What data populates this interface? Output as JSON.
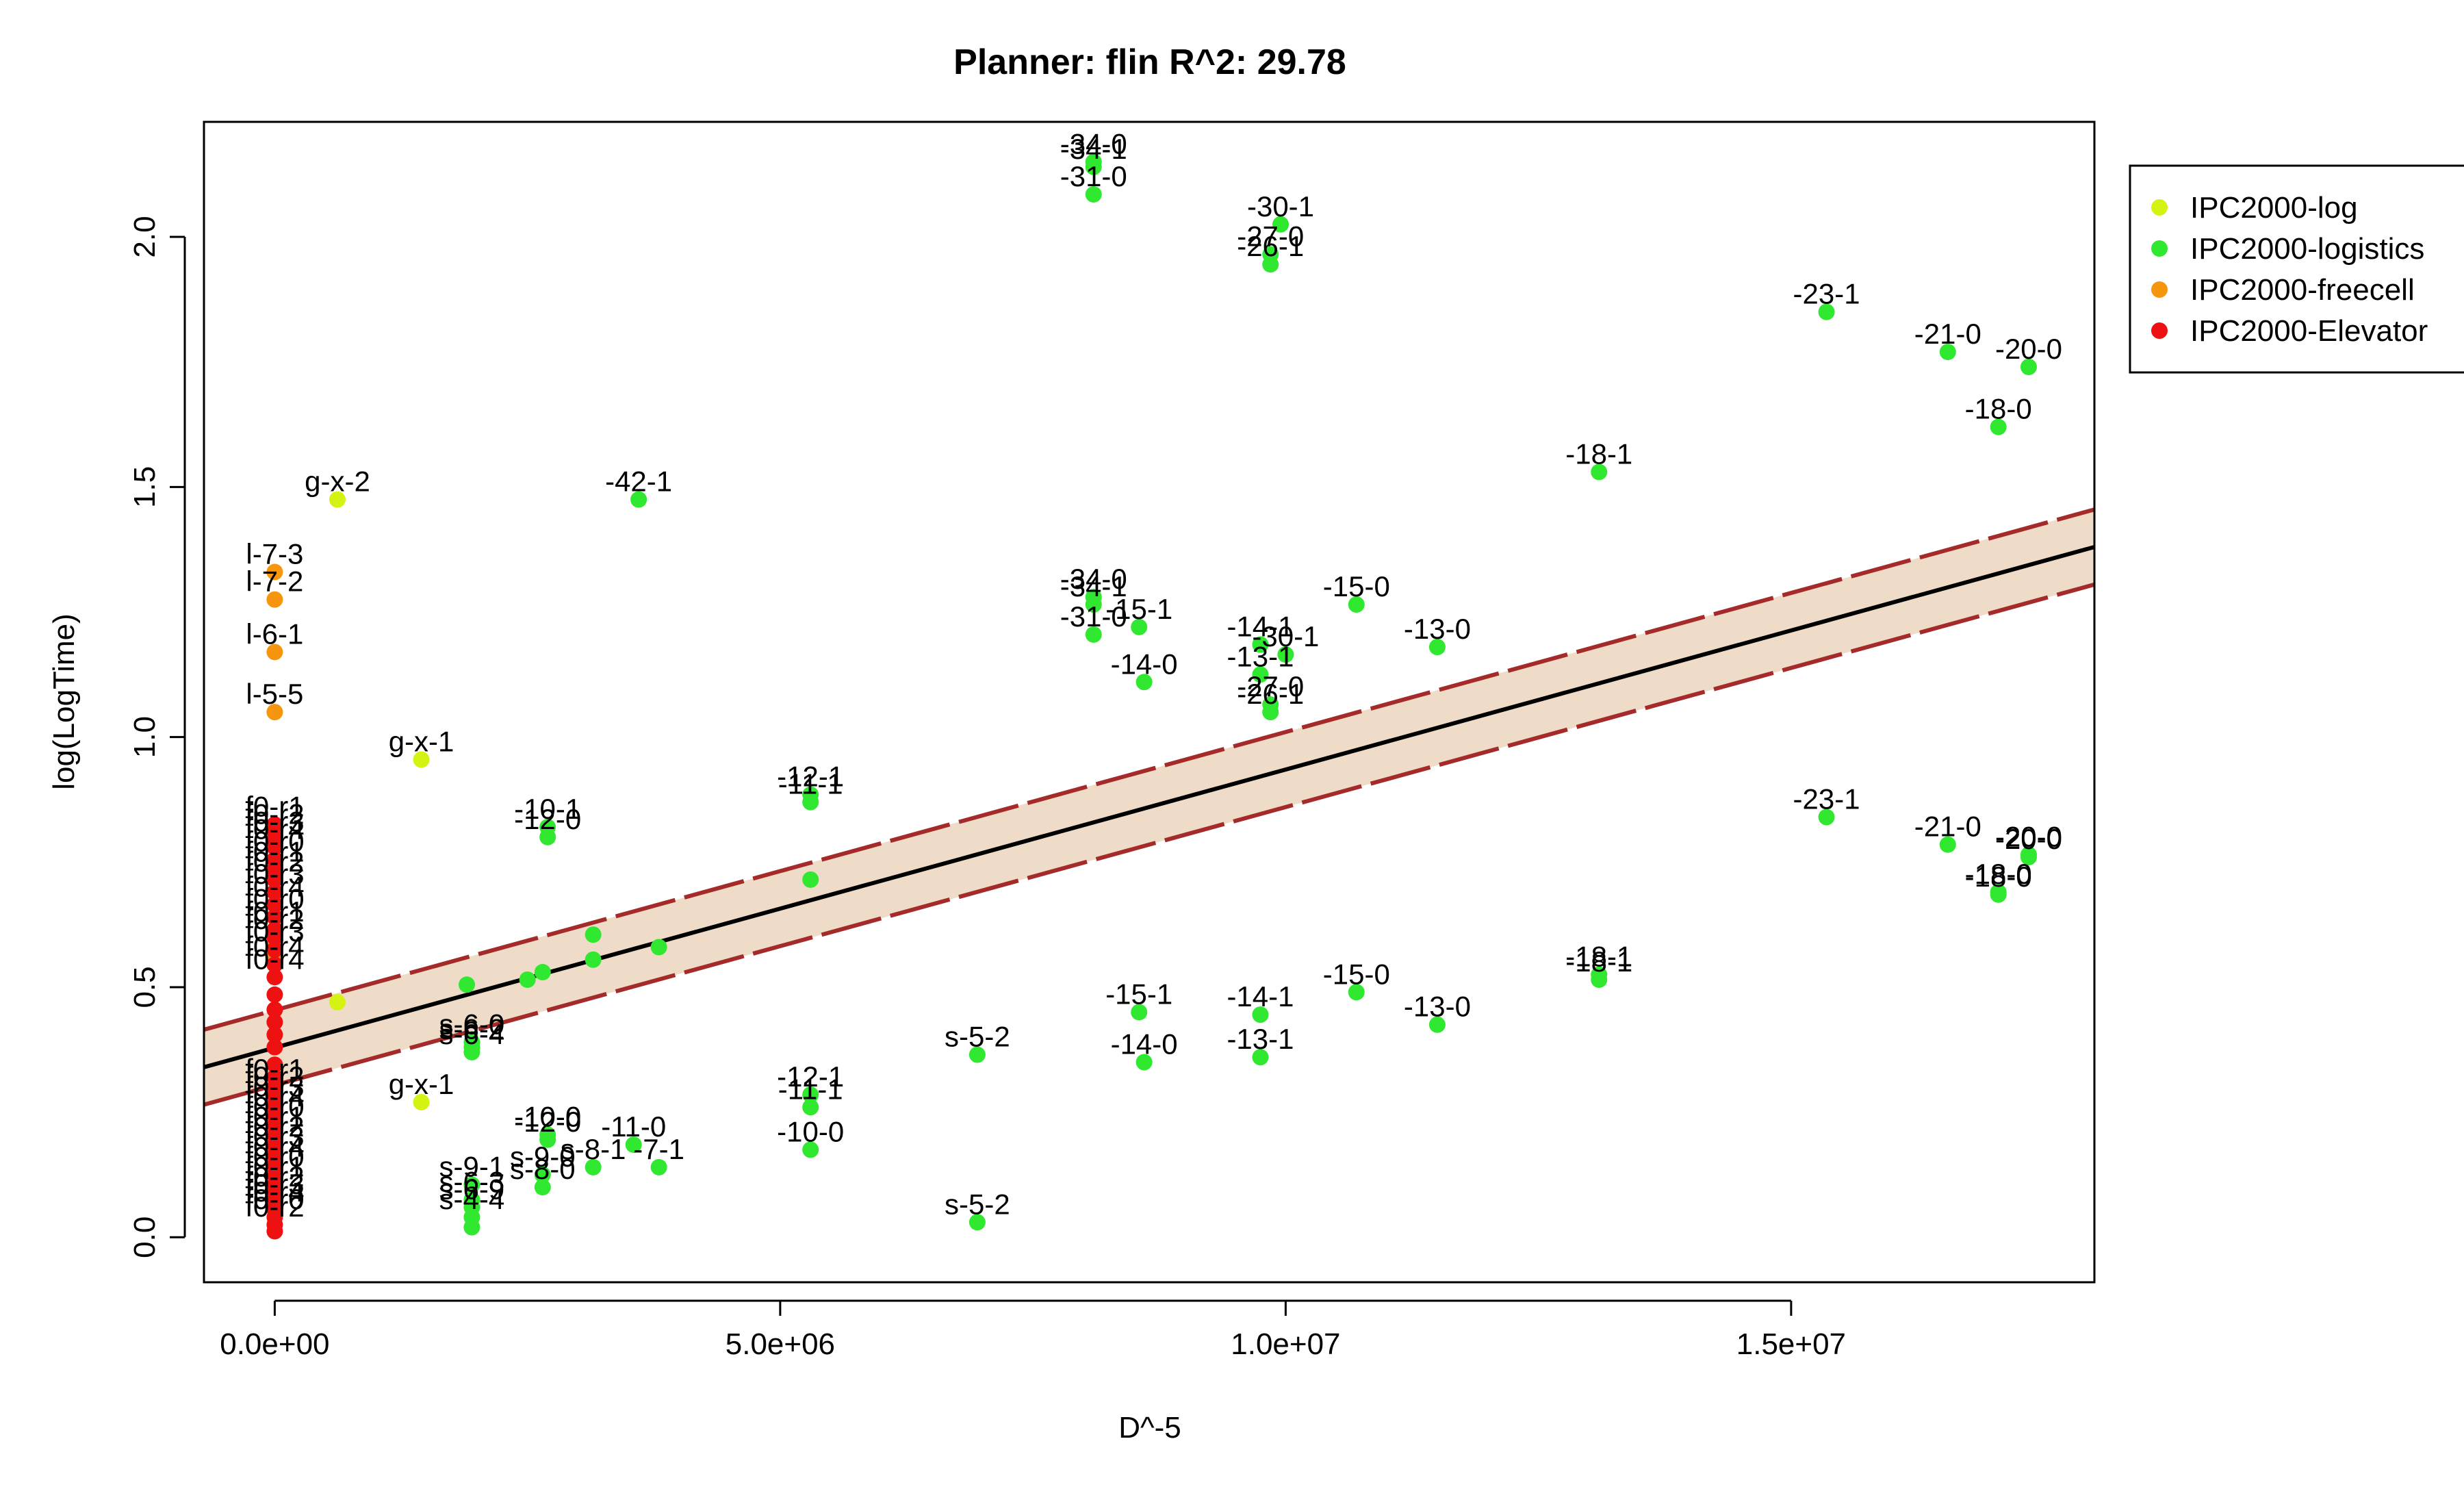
{
  "chart_data": {
    "type": "scatter",
    "title": "Planner: flin R^2: 29.78",
    "xlabel": "D^-5",
    "ylabel": "log(LogTime)",
    "xlim": [
      -700000,
      18000000
    ],
    "ylim": [
      -0.09,
      2.23
    ],
    "xticks": [
      0,
      5000000,
      10000000,
      15000000
    ],
    "xtick_labels": [
      "0.0e+00",
      "5.0e+06",
      "1.0e+07",
      "1.5e+07"
    ],
    "yticks": [
      0.0,
      0.5,
      1.0,
      1.5,
      2.0
    ],
    "ytick_labels": [
      "0.0",
      "0.5",
      "1.0",
      "1.5",
      "2.0"
    ],
    "grid": false,
    "legend_position": "top-right outside",
    "fit": {
      "x0": -700000,
      "y0": 0.34,
      "x1": 18000000,
      "y1": 1.38,
      "band_halfwidth": 0.075,
      "line_color": "#000000",
      "band_color": "#a52a2a",
      "band_fill": "#eedcc8"
    },
    "series": [
      {
        "name": "IPC2000-log",
        "color": "#d4f312",
        "points": [
          {
            "x": 620000,
            "y": 1.475,
            "label": "g-x-2"
          },
          {
            "x": 1450000,
            "y": 0.955,
            "label": "g-x-1"
          },
          {
            "x": 620000,
            "y": 0.47,
            "label": ""
          },
          {
            "x": 1450000,
            "y": 0.27,
            "label": "g-x-1"
          }
        ]
      },
      {
        "name": "IPC2000-logistics",
        "color": "#2fe82f",
        "points": [
          {
            "x": 8100000,
            "y": 2.15,
            "label": "-34-0"
          },
          {
            "x": 8100000,
            "y": 2.14,
            "label": "-34-1"
          },
          {
            "x": 8100000,
            "y": 2.085,
            "label": "-31-0"
          },
          {
            "x": 9950000,
            "y": 2.025,
            "label": "-30-1"
          },
          {
            "x": 9850000,
            "y": 1.965,
            "label": "-27-0"
          },
          {
            "x": 9850000,
            "y": 1.945,
            "label": "-26-1"
          },
          {
            "x": 15350000,
            "y": 1.85,
            "label": "-23-1"
          },
          {
            "x": 16550000,
            "y": 1.77,
            "label": "-21-0"
          },
          {
            "x": 17350000,
            "y": 1.74,
            "label": "-20-0"
          },
          {
            "x": 17050000,
            "y": 1.62,
            "label": "-18-0"
          },
          {
            "x": 13100000,
            "y": 1.53,
            "label": "-18-1"
          },
          {
            "x": 3600000,
            "y": 1.475,
            "label": "-42-1"
          },
          {
            "x": 8100000,
            "y": 1.28,
            "label": "-34-0"
          },
          {
            "x": 8100000,
            "y": 1.265,
            "label": "-34-1"
          },
          {
            "x": 10700000,
            "y": 1.265,
            "label": "-15-0"
          },
          {
            "x": 8100000,
            "y": 1.205,
            "label": "-31-0"
          },
          {
            "x": 8550000,
            "y": 1.22,
            "label": "-15-1"
          },
          {
            "x": 9750000,
            "y": 1.185,
            "label": "-14-1"
          },
          {
            "x": 10000000,
            "y": 1.165,
            "label": "-30-1"
          },
          {
            "x": 11500000,
            "y": 1.18,
            "label": "-13-0"
          },
          {
            "x": 9750000,
            "y": 1.125,
            "label": "-13-1"
          },
          {
            "x": 8600000,
            "y": 1.11,
            "label": "-14-0"
          },
          {
            "x": 9850000,
            "y": 1.065,
            "label": "-27-0"
          },
          {
            "x": 9850000,
            "y": 1.05,
            "label": "-26-1"
          },
          {
            "x": 5300000,
            "y": 0.885,
            "label": "-12-1"
          },
          {
            "x": 5300000,
            "y": 0.87,
            "label": "-11-1"
          },
          {
            "x": 2700000,
            "y": 0.82,
            "label": "-10-1"
          },
          {
            "x": 2700000,
            "y": 0.8,
            "label": "-12-0"
          },
          {
            "x": 15350000,
            "y": 0.84,
            "label": "-23-1"
          },
          {
            "x": 16550000,
            "y": 0.785,
            "label": "-21-0"
          },
          {
            "x": 17350000,
            "y": 0.765,
            "label": "-20-0"
          },
          {
            "x": 17350000,
            "y": 0.76,
            "label": "-20-0"
          },
          {
            "x": 17050000,
            "y": 0.69,
            "label": "-18-0"
          },
          {
            "x": 17050000,
            "y": 0.685,
            "label": "-18-0"
          },
          {
            "x": 5300000,
            "y": 0.715,
            "label": ""
          },
          {
            "x": 3150000,
            "y": 0.605,
            "label": ""
          },
          {
            "x": 3150000,
            "y": 0.555,
            "label": ""
          },
          {
            "x": 3800000,
            "y": 0.58,
            "label": ""
          },
          {
            "x": 2650000,
            "y": 0.53,
            "label": ""
          },
          {
            "x": 2500000,
            "y": 0.515,
            "label": ""
          },
          {
            "x": 1900000,
            "y": 0.505,
            "label": ""
          },
          {
            "x": 13100000,
            "y": 0.525,
            "label": "-18-1"
          },
          {
            "x": 13100000,
            "y": 0.515,
            "label": "-18-1"
          },
          {
            "x": 10700000,
            "y": 0.49,
            "label": "-15-0"
          },
          {
            "x": 8550000,
            "y": 0.45,
            "label": "-15-1"
          },
          {
            "x": 9750000,
            "y": 0.445,
            "label": "-14-1"
          },
          {
            "x": 11500000,
            "y": 0.425,
            "label": "-13-0"
          },
          {
            "x": 1950000,
            "y": 0.39,
            "label": "s-6-0"
          },
          {
            "x": 1950000,
            "y": 0.38,
            "label": "s-6-2"
          },
          {
            "x": 1950000,
            "y": 0.37,
            "label": "s-6-4"
          },
          {
            "x": 6950000,
            "y": 0.365,
            "label": "s-5-2"
          },
          {
            "x": 9750000,
            "y": 0.36,
            "label": "-13-1"
          },
          {
            "x": 8600000,
            "y": 0.35,
            "label": "-14-0"
          },
          {
            "x": 5300000,
            "y": 0.285,
            "label": "-12-1"
          },
          {
            "x": 5300000,
            "y": 0.26,
            "label": "-11-1"
          },
          {
            "x": 2700000,
            "y": 0.205,
            "label": "-10-0"
          },
          {
            "x": 2700000,
            "y": 0.195,
            "label": "-12-0"
          },
          {
            "x": 3550000,
            "y": 0.185,
            "label": "-11-0"
          },
          {
            "x": 5300000,
            "y": 0.175,
            "label": "-10-0"
          },
          {
            "x": 3150000,
            "y": 0.14,
            "label": "s-8-1"
          },
          {
            "x": 3800000,
            "y": 0.14,
            "label": "-7-1"
          },
          {
            "x": 2650000,
            "y": 0.125,
            "label": "s-9-0"
          },
          {
            "x": 2650000,
            "y": 0.1,
            "label": "s-8-0"
          },
          {
            "x": 1950000,
            "y": 0.105,
            "label": "s-9-1"
          },
          {
            "x": 1950000,
            "y": 0.075,
            "label": "s-6-3"
          },
          {
            "x": 1950000,
            "y": 0.06,
            "label": "s-6-9"
          },
          {
            "x": 1950000,
            "y": 0.04,
            "label": "s-4-4"
          },
          {
            "x": 1950000,
            "y": 0.02,
            "label": ""
          },
          {
            "x": 6950000,
            "y": 0.03,
            "label": "s-5-2"
          }
        ]
      },
      {
        "name": "IPC2000-freecell",
        "color": "#f6960f",
        "points": [
          {
            "x": 0,
            "y": 1.33,
            "label": "l-7-3"
          },
          {
            "x": 0,
            "y": 1.275,
            "label": "l-7-2"
          },
          {
            "x": 0,
            "y": 1.17,
            "label": "l-6-1"
          },
          {
            "x": 0,
            "y": 1.05,
            "label": "l-5-5"
          },
          {
            "x": 0,
            "y": 0.585,
            "label": ""
          },
          {
            "x": 0,
            "y": 0.57,
            "label": ""
          },
          {
            "x": 0,
            "y": 0.555,
            "label": ""
          }
        ]
      },
      {
        "name": "IPC2000-Elevator",
        "color": "#ee1111",
        "points": [
          {
            "x": 0,
            "y": 0.825,
            "label": "f0-r1"
          },
          {
            "x": 0,
            "y": 0.81,
            "label": "f0-r2"
          },
          {
            "x": 0,
            "y": 0.795,
            "label": "f0-r3"
          },
          {
            "x": 0,
            "y": 0.78,
            "label": "f0-r4"
          },
          {
            "x": 0,
            "y": 0.755,
            "label": "f0-r0"
          },
          {
            "x": 0,
            "y": 0.735,
            "label": "f0-r1"
          },
          {
            "x": 0,
            "y": 0.715,
            "label": "f0-r2"
          },
          {
            "x": 0,
            "y": 0.69,
            "label": "f0-r3"
          },
          {
            "x": 0,
            "y": 0.665,
            "label": "f0-r4"
          },
          {
            "x": 0,
            "y": 0.64,
            "label": "f0-r0"
          },
          {
            "x": 0,
            "y": 0.615,
            "label": "f0-r1"
          },
          {
            "x": 0,
            "y": 0.6,
            "label": "f0-r2"
          },
          {
            "x": 0,
            "y": 0.575,
            "label": "f0-r3"
          },
          {
            "x": 0,
            "y": 0.545,
            "label": "f0-r4"
          },
          {
            "x": 0,
            "y": 0.52,
            "label": "f0-r4"
          },
          {
            "x": 0,
            "y": 0.485,
            "label": ""
          },
          {
            "x": 0,
            "y": 0.455,
            "label": ""
          },
          {
            "x": 0,
            "y": 0.43,
            "label": ""
          },
          {
            "x": 0,
            "y": 0.405,
            "label": ""
          },
          {
            "x": 0,
            "y": 0.38,
            "label": ""
          },
          {
            "x": 0,
            "y": 0.345,
            "label": ""
          },
          {
            "x": 0,
            "y": 0.32,
            "label": ""
          },
          {
            "x": 0,
            "y": 0.3,
            "label": "f0-r1"
          },
          {
            "x": 0,
            "y": 0.285,
            "label": "f0-r2"
          },
          {
            "x": 0,
            "y": 0.265,
            "label": "f0-r3"
          },
          {
            "x": 0,
            "y": 0.245,
            "label": "f0-r4"
          },
          {
            "x": 0,
            "y": 0.225,
            "label": "f0-r0"
          },
          {
            "x": 0,
            "y": 0.205,
            "label": "f0-r1"
          },
          {
            "x": 0,
            "y": 0.185,
            "label": "f0-r2"
          },
          {
            "x": 0,
            "y": 0.165,
            "label": "f0-r3"
          },
          {
            "x": 0,
            "y": 0.145,
            "label": "f0-r4"
          },
          {
            "x": 0,
            "y": 0.125,
            "label": "f0-r0"
          },
          {
            "x": 0,
            "y": 0.105,
            "label": "f0-r1"
          },
          {
            "x": 0,
            "y": 0.085,
            "label": "f0-r2"
          },
          {
            "x": 0,
            "y": 0.07,
            "label": "f0-r3"
          },
          {
            "x": 0,
            "y": 0.055,
            "label": "f0-r4"
          },
          {
            "x": 0,
            "y": 0.04,
            "label": "f0-r0"
          },
          {
            "x": 0,
            "y": 0.025,
            "label": "f0-r2"
          },
          {
            "x": 0,
            "y": 0.012,
            "label": ""
          }
        ]
      }
    ]
  }
}
